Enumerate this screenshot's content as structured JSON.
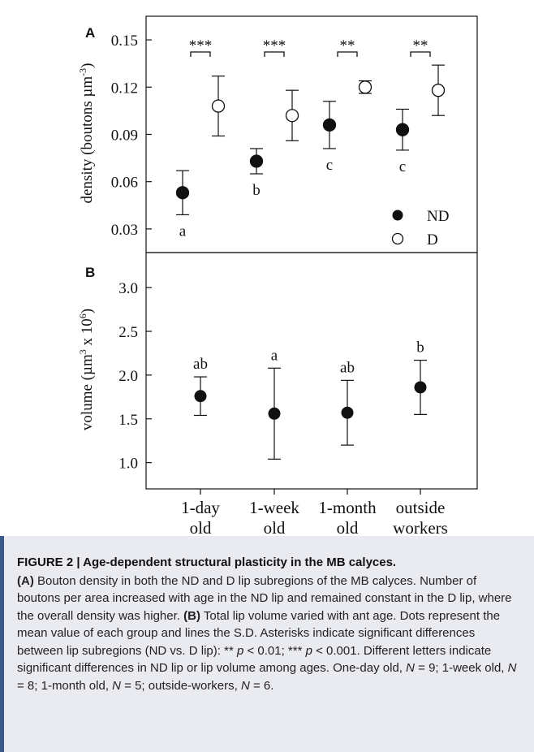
{
  "figure": {
    "panel_a_letter": "A",
    "panel_b_letter": "B",
    "x_categories": [
      [
        "1-day",
        "old"
      ],
      [
        "1-week",
        "old"
      ],
      [
        "1-month",
        "old"
      ],
      [
        "outside",
        "workers"
      ]
    ],
    "legend": {
      "nd": "ND",
      "d": "D"
    },
    "significance": [
      "***",
      "***",
      "**",
      "**"
    ],
    "density_letters": [
      "a",
      "b",
      "c",
      "c"
    ],
    "volume_letters": [
      "ab",
      "a",
      "ab",
      "b"
    ]
  },
  "chart_data": [
    {
      "type": "scatter",
      "panel": "A",
      "ylabel": "density (boutons µm-3)",
      "ylim": [
        0.015,
        0.165
      ],
      "yticks": [
        "0.03",
        "0.06",
        "0.09",
        "0.12",
        "0.15"
      ],
      "categories": [
        "1-day old",
        "1-week old",
        "1-month old",
        "outside workers"
      ],
      "series": [
        {
          "name": "ND",
          "marker": "filled-circle",
          "values": [
            0.053,
            0.073,
            0.096,
            0.093
          ],
          "sd": [
            0.014,
            0.008,
            0.015,
            0.013
          ]
        },
        {
          "name": "D",
          "marker": "open-circle",
          "values": [
            0.108,
            0.102,
            0.12,
            0.118
          ],
          "sd": [
            0.019,
            0.016,
            0.004,
            0.016
          ]
        }
      ]
    },
    {
      "type": "scatter",
      "panel": "B",
      "ylabel": "volume (µm3 x 106)",
      "ylim": [
        0.7,
        3.4
      ],
      "yticks": [
        "1.0",
        "1.5",
        "2.0",
        "2.5",
        "3.0"
      ],
      "categories": [
        "1-day old",
        "1-week old",
        "1-month old",
        "outside workers"
      ],
      "series": [
        {
          "marker": "filled-circle",
          "values": [
            1.76,
            1.56,
            1.57,
            1.86
          ],
          "sd": [
            0.22,
            0.52,
            0.37,
            0.31
          ]
        }
      ]
    }
  ],
  "caption": {
    "number": "FIGURE 2 |",
    "title": "Age-dependent structural plasticity in the MB calyces.",
    "body_html": "<b>(A)</b> Bouton density in both the ND and D lip subregions of the MB calyces. Number of boutons per area increased with age in the ND lip and remained constant in the D lip, where the overall density was higher. <b>(B)</b> Total lip volume varied with ant age. Dots represent the mean value of each group and lines the S.D. Asterisks indicate significant differences between lip subregions (ND vs. D lip): ** <i>p</i> &lt; 0.01; *** <i>p</i> &lt; 0.001. Different letters indicate significant differences in ND lip or lip volume among ages. One-day old, <i>N</i> = 9; 1-week old, <i>N</i> = 8; 1-month old, <i>N</i> = 5; outside-workers, <i>N</i> = 6."
  }
}
